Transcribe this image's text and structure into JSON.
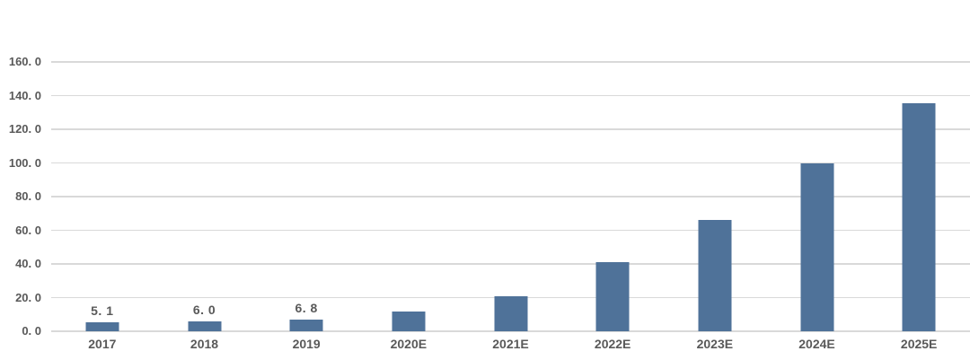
{
  "chart_data": {
    "type": "bar",
    "categories": [
      "2017",
      "2018",
      "2019",
      "2020E",
      "2021E",
      "2022E",
      "2023E",
      "2024E",
      "2025E"
    ],
    "values": [
      5.1,
      6.0,
      6.8,
      11.5,
      21.0,
      41.0,
      66.0,
      100.0,
      135.5
    ],
    "bar_labels": [
      "5. 1",
      "6. 0",
      "6. 8",
      "",
      "",
      "",
      "",
      "",
      ""
    ],
    "y_tick_values": [
      0,
      20,
      40,
      60,
      80,
      100,
      120,
      140,
      160
    ],
    "y_tick_labels": [
      "0. 0",
      "20. 0",
      "40. 0",
      "60. 0",
      "80. 0",
      "100. 0",
      "120. 0",
      "140. 0",
      "160. 0"
    ],
    "ylim": [
      0,
      160
    ],
    "xlabel": "",
    "ylabel": "",
    "title": "",
    "grid": true,
    "legend_position": "none",
    "colors": {
      "bar": "#4F7299",
      "gridline": "#D9D9D9",
      "tick_label": "#595959",
      "data_label": "#595959",
      "background": "#FFFFFF"
    }
  }
}
